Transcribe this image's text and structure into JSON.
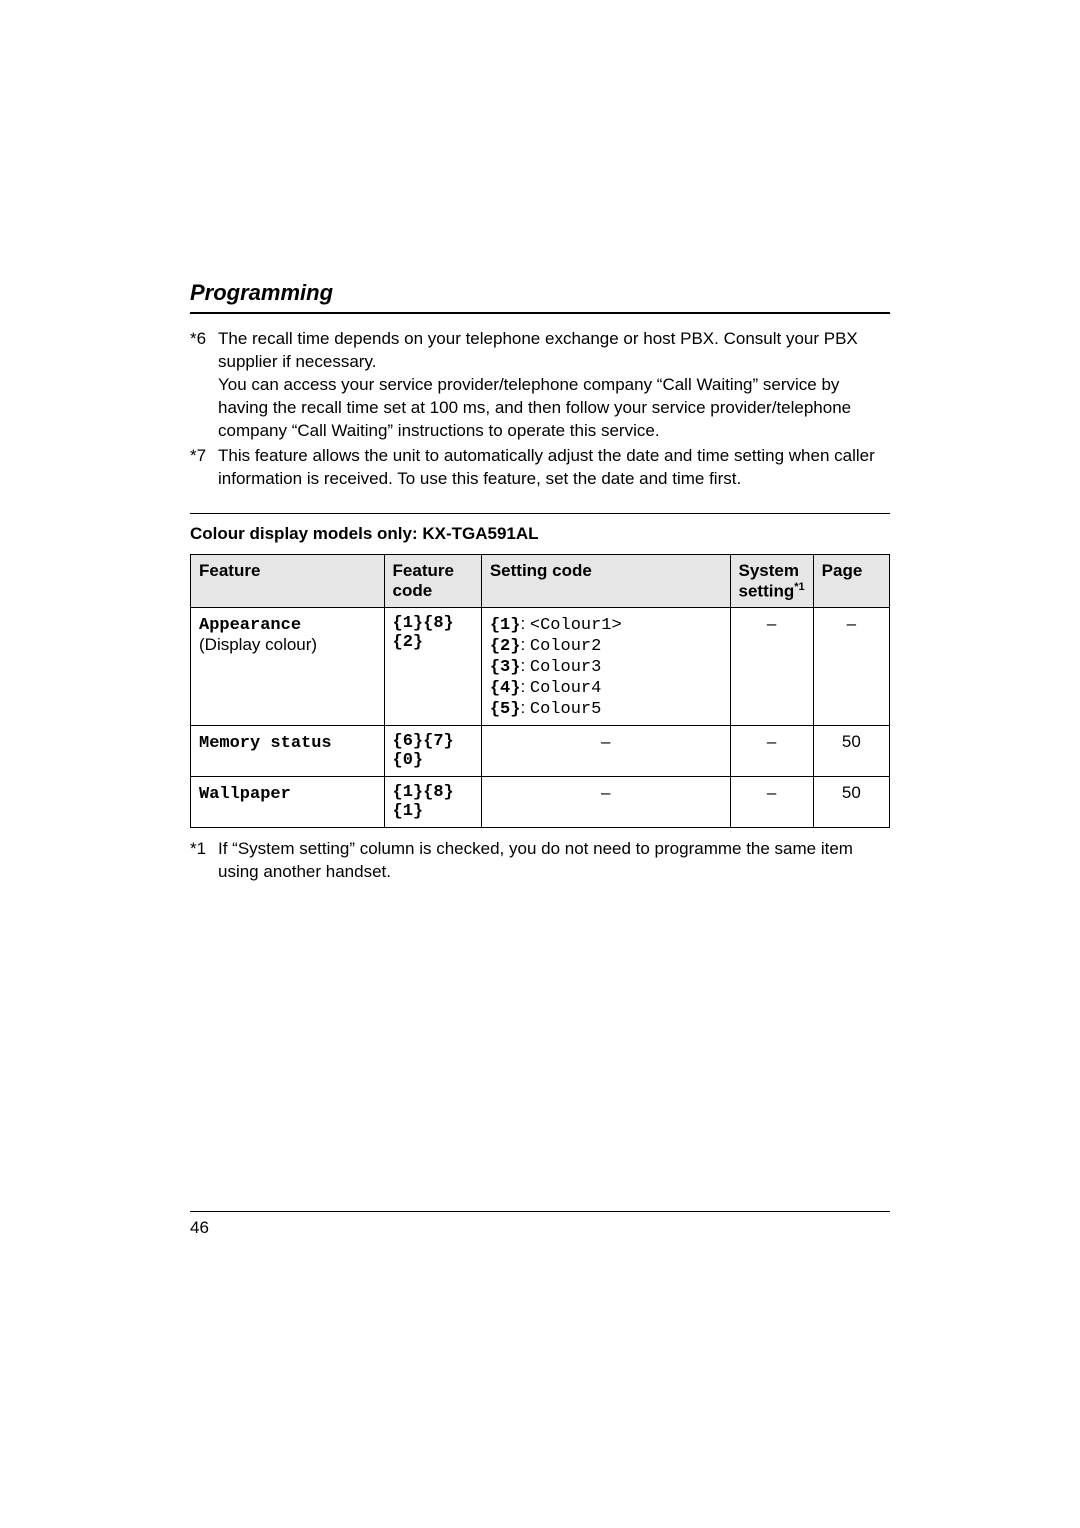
{
  "title": "Programming",
  "footnotes_top": [
    {
      "marker": "*6",
      "text": "The recall time depends on your telephone exchange or host PBX. Consult your PBX supplier if necessary.\nYou can access your service provider/telephone company “Call Waiting” service by having the recall time set at 100 ms, and then follow your service provider/telephone company “Call Waiting” instructions to operate this service."
    },
    {
      "marker": "*7",
      "text": "This feature allows the unit to automatically adjust the date and time setting when caller information is received. To use this feature, set the date and time first."
    }
  ],
  "subhead": "Colour display models only: KX-TGA591AL",
  "table": {
    "headers": {
      "feature": "Feature",
      "code": "Feature code",
      "setting": "Setting code",
      "system": "System setting",
      "system_sup": "*1",
      "page": "Page"
    },
    "rows": [
      {
        "feature_mono": "Appearance",
        "feature_plain": "(Display colour)",
        "code": "{1}{8}{2}",
        "settings": [
          {
            "key": "{1}",
            "val": "<Colour1>"
          },
          {
            "key": "{2}",
            "val": "Colour2"
          },
          {
            "key": "{3}",
            "val": "Colour3"
          },
          {
            "key": "{4}",
            "val": "Colour4"
          },
          {
            "key": "{5}",
            "val": "Colour5"
          }
        ],
        "system": "–",
        "page": "–"
      },
      {
        "feature_mono": "Memory status",
        "feature_plain": "",
        "code": "{6}{7}{0}",
        "settings_dash": "–",
        "system": "–",
        "page": "50"
      },
      {
        "feature_mono": "Wallpaper",
        "feature_plain": "",
        "code": "{1}{8}{1}",
        "settings_dash": "–",
        "system": "–",
        "page": "50"
      }
    ]
  },
  "footnotes_bottom": [
    {
      "marker": "*1",
      "text": "If “System setting” column is checked, you do not need to programme the same item using another handset."
    }
  ],
  "page_number": "46"
}
